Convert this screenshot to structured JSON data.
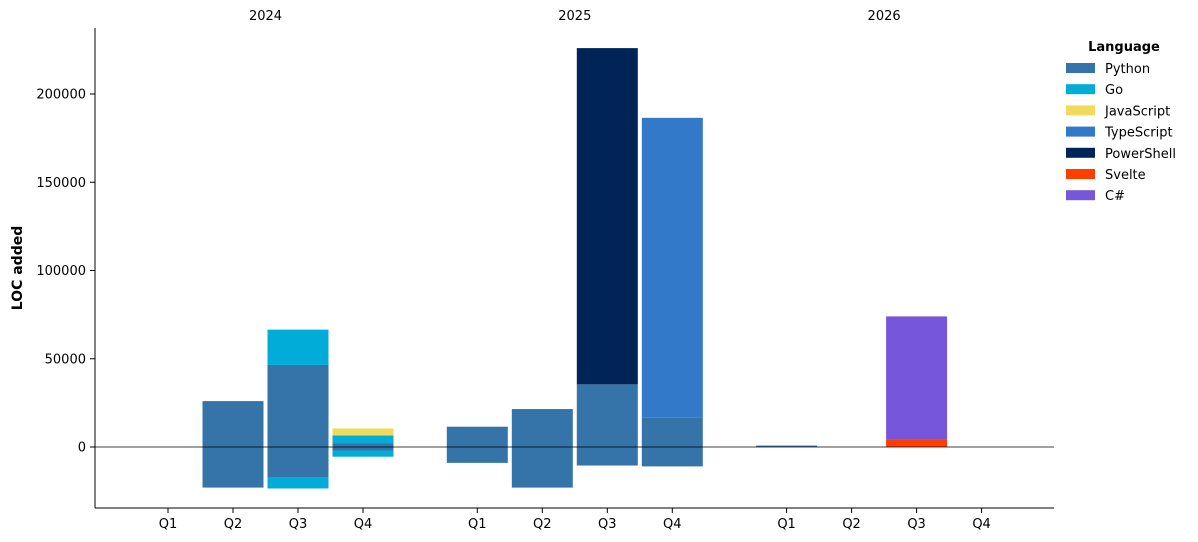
{
  "chart_data": {
    "type": "bar",
    "stacked": true,
    "diverging": true,
    "title": "",
    "ylabel": "LOC added",
    "ylim": [
      -35000,
      238000
    ],
    "yticks": [
      0,
      50000,
      100000,
      150000,
      200000
    ],
    "grid": false,
    "groups": [
      "2024",
      "2025",
      "2026"
    ],
    "categories": [
      "Q1",
      "Q2",
      "Q3",
      "Q4"
    ],
    "legend": {
      "title": "Language",
      "position": "top-right"
    },
    "series": [
      {
        "name": "Python",
        "color": "#3574a8",
        "positive": [
          [
            0,
            26000,
            46500,
            2000
          ],
          [
            11500,
            21500,
            35500,
            16500
          ],
          [
            800,
            0,
            0,
            0
          ]
        ],
        "negative": [
          [
            0,
            -23000,
            -17000,
            -2000
          ],
          [
            -9000,
            -23000,
            -10500,
            -11000
          ],
          [
            0,
            0,
            0,
            0
          ]
        ]
      },
      {
        "name": "Go",
        "color": "#02acd8",
        "positive": [
          [
            0,
            0,
            20000,
            4500
          ],
          [
            0,
            0,
            0,
            0
          ],
          [
            0,
            0,
            0,
            0
          ]
        ],
        "negative": [
          [
            0,
            0,
            -6500,
            -3500
          ],
          [
            0,
            0,
            0,
            0
          ],
          [
            0,
            0,
            0,
            0
          ]
        ]
      },
      {
        "name": "JavaScript",
        "color": "#f0dc5a",
        "positive": [
          [
            0,
            0,
            0,
            4000
          ],
          [
            0,
            0,
            0,
            0
          ],
          [
            0,
            0,
            0,
            0
          ]
        ],
        "negative": [
          [
            0,
            0,
            0,
            0
          ],
          [
            0,
            0,
            0,
            0
          ],
          [
            0,
            0,
            0,
            0
          ]
        ]
      },
      {
        "name": "TypeScript",
        "color": "#3379c9",
        "positive": [
          [
            0,
            0,
            0,
            0
          ],
          [
            0,
            0,
            0,
            170000
          ],
          [
            0,
            0,
            0,
            0
          ]
        ],
        "negative": [
          [
            0,
            0,
            0,
            0
          ],
          [
            0,
            0,
            0,
            0
          ],
          [
            0,
            0,
            0,
            0
          ]
        ]
      },
      {
        "name": "PowerShell",
        "color": "#012456",
        "positive": [
          [
            0,
            0,
            0,
            0
          ],
          [
            0,
            0,
            190500,
            0
          ],
          [
            0,
            0,
            0,
            0
          ]
        ],
        "negative": [
          [
            0,
            0,
            0,
            0
          ],
          [
            0,
            0,
            0,
            0
          ],
          [
            0,
            0,
            0,
            0
          ]
        ]
      },
      {
        "name": "Svelte",
        "color": "#ff3e00",
        "positive": [
          [
            0,
            0,
            0,
            0
          ],
          [
            0,
            0,
            0,
            0
          ],
          [
            0,
            0,
            4500,
            0
          ]
        ],
        "negative": [
          [
            0,
            0,
            0,
            0
          ],
          [
            0,
            0,
            0,
            0
          ],
          [
            0,
            0,
            0,
            0
          ]
        ]
      },
      {
        "name": "C#",
        "color": "#7656da",
        "positive": [
          [
            0,
            0,
            0,
            0
          ],
          [
            0,
            0,
            0,
            0
          ],
          [
            0,
            0,
            69500,
            0
          ]
        ],
        "negative": [
          [
            0,
            0,
            0,
            0
          ],
          [
            0,
            0,
            0,
            0
          ],
          [
            0,
            0,
            0,
            0
          ]
        ]
      }
    ]
  }
}
